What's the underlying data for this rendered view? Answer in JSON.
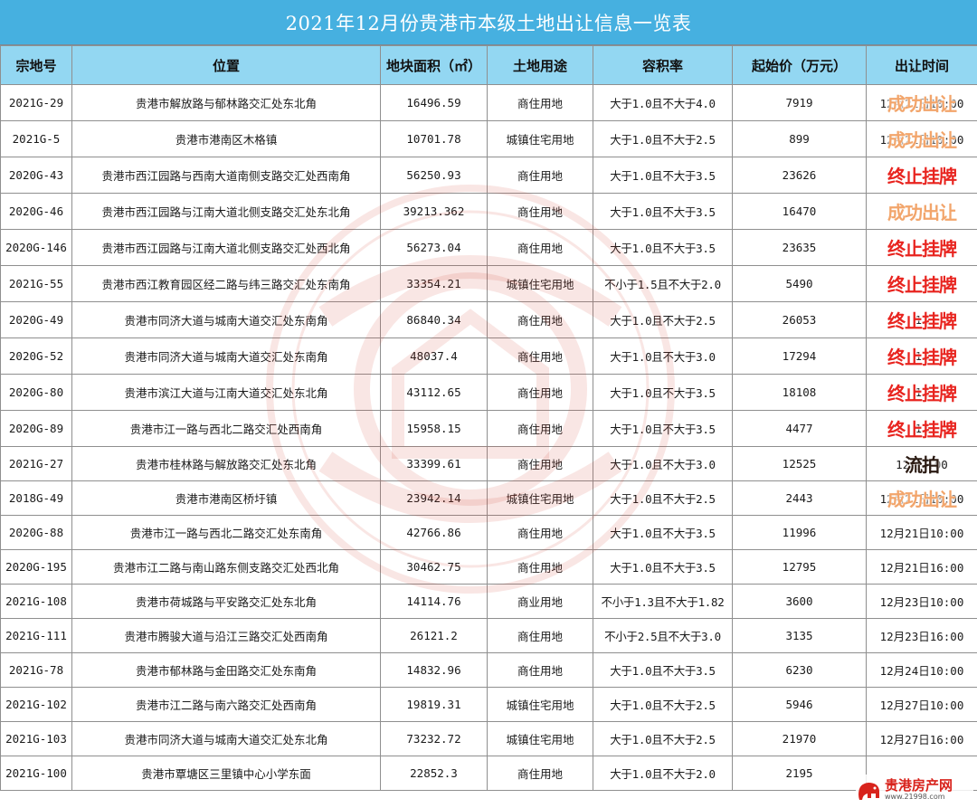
{
  "title": "2021年12月份贵港市本级土地出让信息一览表",
  "headers": {
    "id": "宗地号",
    "location": "位置",
    "area": "地块面积（㎡）",
    "use": "土地用途",
    "far": "容积率",
    "price": "起始价（万元）",
    "time": "出让时间"
  },
  "rows": [
    {
      "id": "2021G-29",
      "location": "贵港市解放路与郁林路交汇处东北角",
      "area": "16496.59",
      "use": "商住用地",
      "far": "大于1.0且不大于4.0",
      "price": "7919",
      "time": "12月21日10:00",
      "stamp": "成功出让",
      "stamp_type": "success"
    },
    {
      "id": "2021G-5",
      "location": "贵港市港南区木格镇",
      "area": "10701.78",
      "use": "城镇住宅用地",
      "far": "大于1.0且不大于2.5",
      "price": "899",
      "time": "12月21日10:00",
      "stamp": "成功出让",
      "stamp_type": "success"
    },
    {
      "id": "2020G-43",
      "location": "贵港市西江园路与西南大道南侧支路交汇处西南角",
      "area": "56250.93",
      "use": "商住用地",
      "far": "大于1.0且不大于3.5",
      "price": "23626",
      "time": "",
      "stamp": "终止挂牌",
      "stamp_type": "terminated"
    },
    {
      "id": "2020G-46",
      "location": "贵港市西江园路与江南大道北侧支路交汇处东北角",
      "area": "39213.362",
      "use": "商住用地",
      "far": "大于1.0且不大于3.5",
      "price": "16470",
      "time": "",
      "stamp": "成功出让",
      "stamp_type": "success"
    },
    {
      "id": "2020G-146",
      "location": "贵港市西江园路与江南大道北侧支路交汇处西北角",
      "area": "56273.04",
      "use": "商住用地",
      "far": "大于1.0且不大于3.5",
      "price": "23635",
      "time": "",
      "stamp": "终止挂牌",
      "stamp_type": "terminated"
    },
    {
      "id": "2021G-55",
      "location": "贵港市西江教育园区经二路与纬三路交汇处东南角",
      "area": "33354.21",
      "use": "城镇住宅用地",
      "far": "不小于1.5且不大于2.0",
      "price": "5490",
      "time": "",
      "stamp": "终止挂牌",
      "stamp_type": "terminated"
    },
    {
      "id": "2020G-49",
      "location": "贵港市同济大道与城南大道交汇处东南角",
      "area": "86840.34",
      "use": "商住用地",
      "far": "大于1.0且不大于2.5",
      "price": "26053",
      "time": "12",
      "stamp": "终止挂牌",
      "stamp_type": "terminated"
    },
    {
      "id": "2020G-52",
      "location": "贵港市同济大道与城南大道交汇处东南角",
      "area": "48037.4",
      "use": "商住用地",
      "far": "大于1.0且不大于3.0",
      "price": "17294",
      "time": "12",
      "stamp": "终止挂牌",
      "stamp_type": "terminated"
    },
    {
      "id": "2020G-80",
      "location": "贵港市滨江大道与江南大道交汇处东北角",
      "area": "43112.65",
      "use": "商住用地",
      "far": "大于1.0且不大于3.5",
      "price": "18108",
      "time": "12",
      "stamp": "终止挂牌",
      "stamp_type": "terminated"
    },
    {
      "id": "2020G-89",
      "location": "贵港市江一路与西北二路交汇处西南角",
      "area": "15958.15",
      "use": "商住用地",
      "far": "大于1.0且不大于3.5",
      "price": "4477",
      "time": "12",
      "stamp": "终止挂牌",
      "stamp_type": "terminated"
    },
    {
      "id": "2021G-27",
      "location": "贵港市桂林路与解放路交汇处东北角",
      "area": "33399.61",
      "use": "商住用地",
      "far": "大于1.0且不大于3.0",
      "price": "12525",
      "time": "12月    :00",
      "stamp": "流拍",
      "stamp_type": "failed"
    },
    {
      "id": "2018G-49",
      "location": "贵港市港南区桥圩镇",
      "area": "23942.14",
      "use": "城镇住宅用地",
      "far": "大于1.0且不大于2.5",
      "price": "2443",
      "time": "12月21日10:00",
      "stamp": "成功出让",
      "stamp_type": "success"
    },
    {
      "id": "2020G-88",
      "location": "贵港市江一路与西北二路交汇处东南角",
      "area": "42766.86",
      "use": "商住用地",
      "far": "大于1.0且不大于3.5",
      "price": "11996",
      "time": "12月21日10:00",
      "stamp": "",
      "stamp_type": ""
    },
    {
      "id": "2020G-195",
      "location": "贵港市江二路与南山路东侧支路交汇处西北角",
      "area": "30462.75",
      "use": "商住用地",
      "far": "大于1.0且不大于3.5",
      "price": "12795",
      "time": "12月21日16:00",
      "stamp": "",
      "stamp_type": ""
    },
    {
      "id": "2021G-108",
      "location": "贵港市荷城路与平安路交汇处东北角",
      "area": "14114.76",
      "use": "商业用地",
      "far": "不小于1.3且不大于1.82",
      "price": "3600",
      "time": "12月23日10:00",
      "stamp": "",
      "stamp_type": ""
    },
    {
      "id": "2021G-111",
      "location": "贵港市腾骏大道与沿江三路交汇处西南角",
      "area": "26121.2",
      "use": "商住用地",
      "far": "不小于2.5且不大于3.0",
      "price": "3135",
      "time": "12月23日16:00",
      "stamp": "",
      "stamp_type": ""
    },
    {
      "id": "2021G-78",
      "location": "贵港市郁林路与金田路交汇处东南角",
      "area": "14832.96",
      "use": "商住用地",
      "far": "大于1.0且不大于3.5",
      "price": "6230",
      "time": "12月24日10:00",
      "stamp": "",
      "stamp_type": ""
    },
    {
      "id": "2021G-102",
      "location": "贵港市江二路与南六路交汇处西南角",
      "area": "19819.31",
      "use": "城镇住宅用地",
      "far": "大于1.0且不大于2.5",
      "price": "5946",
      "time": "12月27日10:00",
      "stamp": "",
      "stamp_type": ""
    },
    {
      "id": "2021G-103",
      "location": "贵港市同济大道与城南大道交汇处东北角",
      "area": "73232.72",
      "use": "城镇住宅用地",
      "far": "大于1.0且不大于2.5",
      "price": "21970",
      "time": "12月27日16:00",
      "stamp": "",
      "stamp_type": ""
    },
    {
      "id": "2021G-100",
      "location": "贵港市覃塘区三里镇中心小学东面",
      "area": "22852.3",
      "use": "商住用地",
      "far": "大于1.0且不大于2.0",
      "price": "2195",
      "time": "",
      "stamp": "",
      "stamp_type": ""
    }
  ],
  "watermark": {
    "text_url": "www.21998.cn",
    "color": "#d23a2c"
  },
  "logo": {
    "name": "贵港房产网",
    "url": "www.21998.com",
    "color": "#d8231c"
  }
}
